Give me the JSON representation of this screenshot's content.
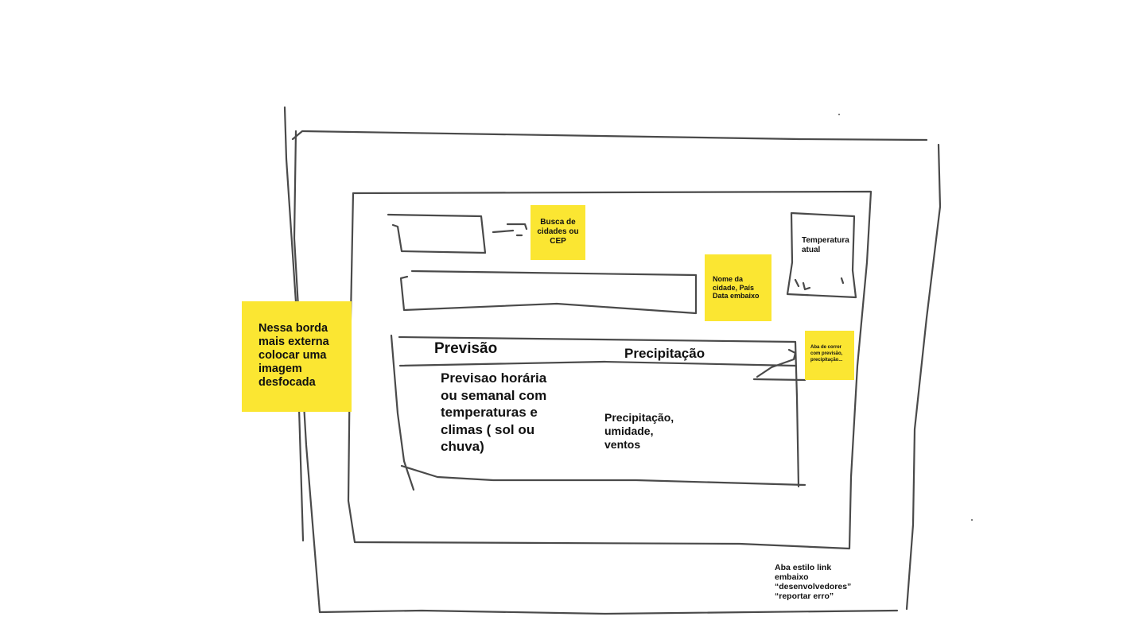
{
  "sticky_notes": {
    "outer_border": "Nessa borda mais externa colocar uma imagem desfocada",
    "search": "Busca de cidades ou CEP",
    "city_name_line1": "Nome da cidade, País",
    "city_name_line2": "Data embaixo",
    "scroll_tab": "Aba de correr com previsão, precipitação..."
  },
  "labels": {
    "current_temperature": "Temperatura atual",
    "forecast_tab": "Previsão",
    "precipitation_tab": "Precipitação",
    "forecast_body": "Previsao horária ou semanal com temperaturas e climas ( sol ou chuva)",
    "precipitation_body": "Precipitação, umidade, ventos",
    "footer_line1": "Aba estilo link embaixo",
    "footer_line2": "“desenvolvedores”",
    "footer_line3": "“reportar erro”"
  },
  "colors": {
    "sticky_note": "#fbe632",
    "stroke": "#4a4a4a"
  }
}
